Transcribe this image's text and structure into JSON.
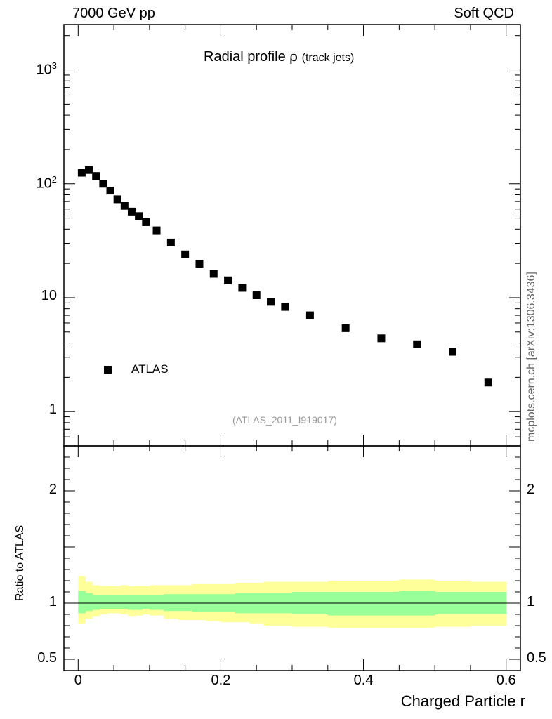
{
  "header": {
    "left": "7000 GeV pp",
    "right": "Soft QCD"
  },
  "side_label": "mcplots.cern.ch [arXiv:1306.3436]",
  "chart_data": {
    "type": "scatter",
    "title": "Radial profile",
    "title_symbol": "ρ",
    "title_suffix": "(track jets)",
    "analysis_id": "(ATLAS_2011_I919017)",
    "xlabel": "Charged Particle r",
    "ylabel_ratio": "Ratio to ATLAS",
    "xlim": [
      -0.02,
      0.62
    ],
    "ylim": [
      0.5,
      2500
    ],
    "yscale": "log",
    "ratio_ylim": [
      0.4,
      2.4
    ],
    "x_ticks": [
      {
        "value": 0,
        "label": "0"
      },
      {
        "value": 0.2,
        "label": "0.2"
      },
      {
        "value": 0.4,
        "label": "0.4"
      },
      {
        "value": 0.6,
        "label": "0.6"
      }
    ],
    "y_ticks": [
      {
        "value": 1,
        "label": "1"
      },
      {
        "value": 10,
        "label": "10"
      },
      {
        "value": 100,
        "label": "10",
        "exp": "2"
      },
      {
        "value": 1000,
        "label": "10",
        "exp": "3"
      }
    ],
    "ratio_ticks": [
      {
        "value": 0.5,
        "label": "0.5"
      },
      {
        "value": 1,
        "label": "1"
      },
      {
        "value": 2,
        "label": "2"
      }
    ],
    "series": [
      {
        "name": "ATLAS",
        "marker": "square",
        "color": "#000000",
        "x": [
          0.005,
          0.015,
          0.025,
          0.035,
          0.045,
          0.055,
          0.065,
          0.075,
          0.085,
          0.095,
          0.11,
          0.13,
          0.15,
          0.17,
          0.19,
          0.21,
          0.23,
          0.25,
          0.27,
          0.29,
          0.325,
          0.375,
          0.425,
          0.475,
          0.525,
          0.575
        ],
        "y": [
          125,
          132,
          117,
          100,
          87,
          73,
          64,
          57,
          52,
          46,
          39,
          30.5,
          24,
          19.8,
          16.2,
          14.2,
          12.2,
          10.5,
          9.2,
          8.3,
          7.0,
          5.4,
          4.4,
          3.9,
          3.35,
          1.8
        ]
      }
    ],
    "ratio_bands": [
      {
        "name": "total uncertainty",
        "color": "#ffff99",
        "edges": [
          0,
          0.01,
          0.02,
          0.03,
          0.04,
          0.05,
          0.06,
          0.07,
          0.08,
          0.09,
          0.1,
          0.12,
          0.14,
          0.16,
          0.18,
          0.2,
          0.22,
          0.24,
          0.26,
          0.28,
          0.3,
          0.35,
          0.4,
          0.45,
          0.5,
          0.55,
          0.6
        ],
        "lo": [
          0.82,
          0.86,
          0.88,
          0.9,
          0.91,
          0.91,
          0.9,
          0.88,
          0.89,
          0.9,
          0.89,
          0.86,
          0.85,
          0.85,
          0.84,
          0.83,
          0.83,
          0.82,
          0.8,
          0.8,
          0.79,
          0.78,
          0.78,
          0.78,
          0.79,
          0.8
        ],
        "hi": [
          1.24,
          1.19,
          1.16,
          1.15,
          1.15,
          1.15,
          1.16,
          1.15,
          1.15,
          1.15,
          1.16,
          1.16,
          1.16,
          1.17,
          1.17,
          1.17,
          1.18,
          1.18,
          1.19,
          1.19,
          1.19,
          1.2,
          1.2,
          1.21,
          1.2,
          1.19
        ]
      },
      {
        "name": "statistical uncertainty",
        "color": "#99ff99",
        "edges": [
          0,
          0.01,
          0.02,
          0.03,
          0.04,
          0.05,
          0.06,
          0.07,
          0.08,
          0.09,
          0.1,
          0.12,
          0.14,
          0.16,
          0.18,
          0.2,
          0.22,
          0.24,
          0.26,
          0.28,
          0.3,
          0.35,
          0.4,
          0.45,
          0.5,
          0.55,
          0.6
        ],
        "lo": [
          0.91,
          0.93,
          0.94,
          0.95,
          0.95,
          0.95,
          0.95,
          0.94,
          0.94,
          0.95,
          0.94,
          0.93,
          0.93,
          0.92,
          0.92,
          0.92,
          0.91,
          0.91,
          0.91,
          0.91,
          0.9,
          0.89,
          0.89,
          0.89,
          0.9,
          0.9
        ],
        "hi": [
          1.11,
          1.09,
          1.07,
          1.07,
          1.07,
          1.07,
          1.07,
          1.07,
          1.07,
          1.07,
          1.07,
          1.08,
          1.08,
          1.08,
          1.08,
          1.08,
          1.09,
          1.09,
          1.09,
          1.09,
          1.1,
          1.1,
          1.1,
          1.11,
          1.1,
          1.1
        ]
      }
    ]
  }
}
